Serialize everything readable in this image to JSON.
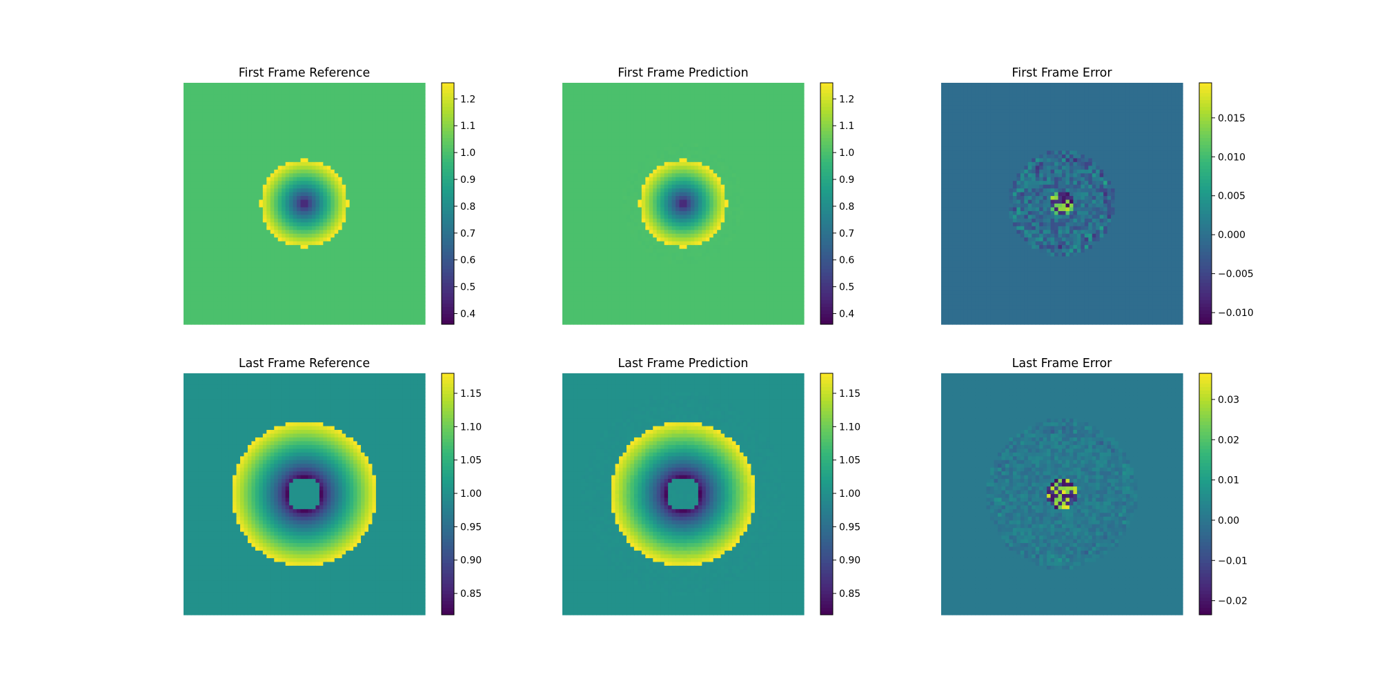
{
  "chart_data": [
    {
      "type": "heatmap",
      "title": "First Frame Reference",
      "grid": 64,
      "colormap": "viridis",
      "clim": [
        0.36,
        1.26
      ],
      "field": {
        "background": 1.0,
        "center": 0.36,
        "rim": 1.26,
        "radius": 0.36,
        "core_radius": 0,
        "noise": 0
      },
      "colorbar_ticks": [
        0.4,
        0.5,
        0.6,
        0.7,
        0.8,
        0.9,
        1.0,
        1.1,
        1.2
      ],
      "colorbar_tick_labels": [
        "0.4",
        "0.5",
        "0.6",
        "0.7",
        "0.8",
        "0.9",
        "1.0",
        "1.1",
        "1.2"
      ]
    },
    {
      "type": "heatmap",
      "title": "First Frame Prediction",
      "grid": 64,
      "colormap": "viridis",
      "clim": [
        0.36,
        1.26
      ],
      "field": {
        "background": 1.0,
        "center": 0.36,
        "rim": 1.26,
        "radius": 0.36,
        "core_radius": 0,
        "noise": 0.004
      },
      "colorbar_ticks": [
        0.4,
        0.5,
        0.6,
        0.7,
        0.8,
        0.9,
        1.0,
        1.1,
        1.2
      ],
      "colorbar_tick_labels": [
        "0.4",
        "0.5",
        "0.6",
        "0.7",
        "0.8",
        "0.9",
        "1.0",
        "1.1",
        "1.2"
      ]
    },
    {
      "type": "heatmap",
      "title": "First Frame Error",
      "grid": 64,
      "colormap": "viridis",
      "clim": [
        -0.0115,
        0.0195
      ],
      "field": {
        "background": -0.0005,
        "error_ring_radius": 0.44,
        "error_center_radius": 0.1,
        "error_amplitude": 0.004,
        "center_amplitude": 0.017
      },
      "colorbar_ticks": [
        -0.01,
        -0.005,
        0.0,
        0.005,
        0.01,
        0.015
      ],
      "colorbar_tick_labels": [
        "−0.010",
        "−0.005",
        "0.000",
        "0.005",
        "0.010",
        "0.015"
      ]
    },
    {
      "type": "heatmap",
      "title": "Last Frame Reference",
      "grid": 64,
      "colormap": "viridis",
      "clim": [
        0.818,
        1.18
      ],
      "field": {
        "background": 1.0,
        "center": 0.82,
        "rim": 1.18,
        "radius": 0.6,
        "core_radius": 0.14,
        "noise": 0
      },
      "colorbar_ticks": [
        0.85,
        0.9,
        0.95,
        1.0,
        1.05,
        1.1,
        1.15
      ],
      "colorbar_tick_labels": [
        "0.85",
        "0.90",
        "0.95",
        "1.00",
        "1.05",
        "1.10",
        "1.15"
      ]
    },
    {
      "type": "heatmap",
      "title": "Last Frame Prediction",
      "grid": 64,
      "colormap": "viridis",
      "clim": [
        0.818,
        1.18
      ],
      "field": {
        "background": 1.0,
        "center": 0.82,
        "rim": 1.18,
        "radius": 0.6,
        "core_radius": 0.14,
        "noise": 0.003
      },
      "colorbar_ticks": [
        0.85,
        0.9,
        0.95,
        1.0,
        1.05,
        1.1,
        1.15
      ],
      "colorbar_tick_labels": [
        "0.85",
        "0.90",
        "0.95",
        "1.00",
        "1.05",
        "1.10",
        "1.15"
      ]
    },
    {
      "type": "heatmap",
      "title": "Last Frame Error",
      "grid": 64,
      "colormap": "viridis",
      "clim": [
        -0.0235,
        0.0365
      ],
      "field": {
        "background": 0.001,
        "error_ring_radius": 0.62,
        "error_center_radius": 0.12,
        "error_amplitude": 0.004,
        "center_amplitude": 0.034
      },
      "colorbar_ticks": [
        -0.02,
        -0.01,
        0.0,
        0.01,
        0.02,
        0.03
      ],
      "colorbar_tick_labels": [
        "−0.02",
        "−0.01",
        "0.00",
        "0.01",
        "0.02",
        "0.03"
      ]
    }
  ]
}
